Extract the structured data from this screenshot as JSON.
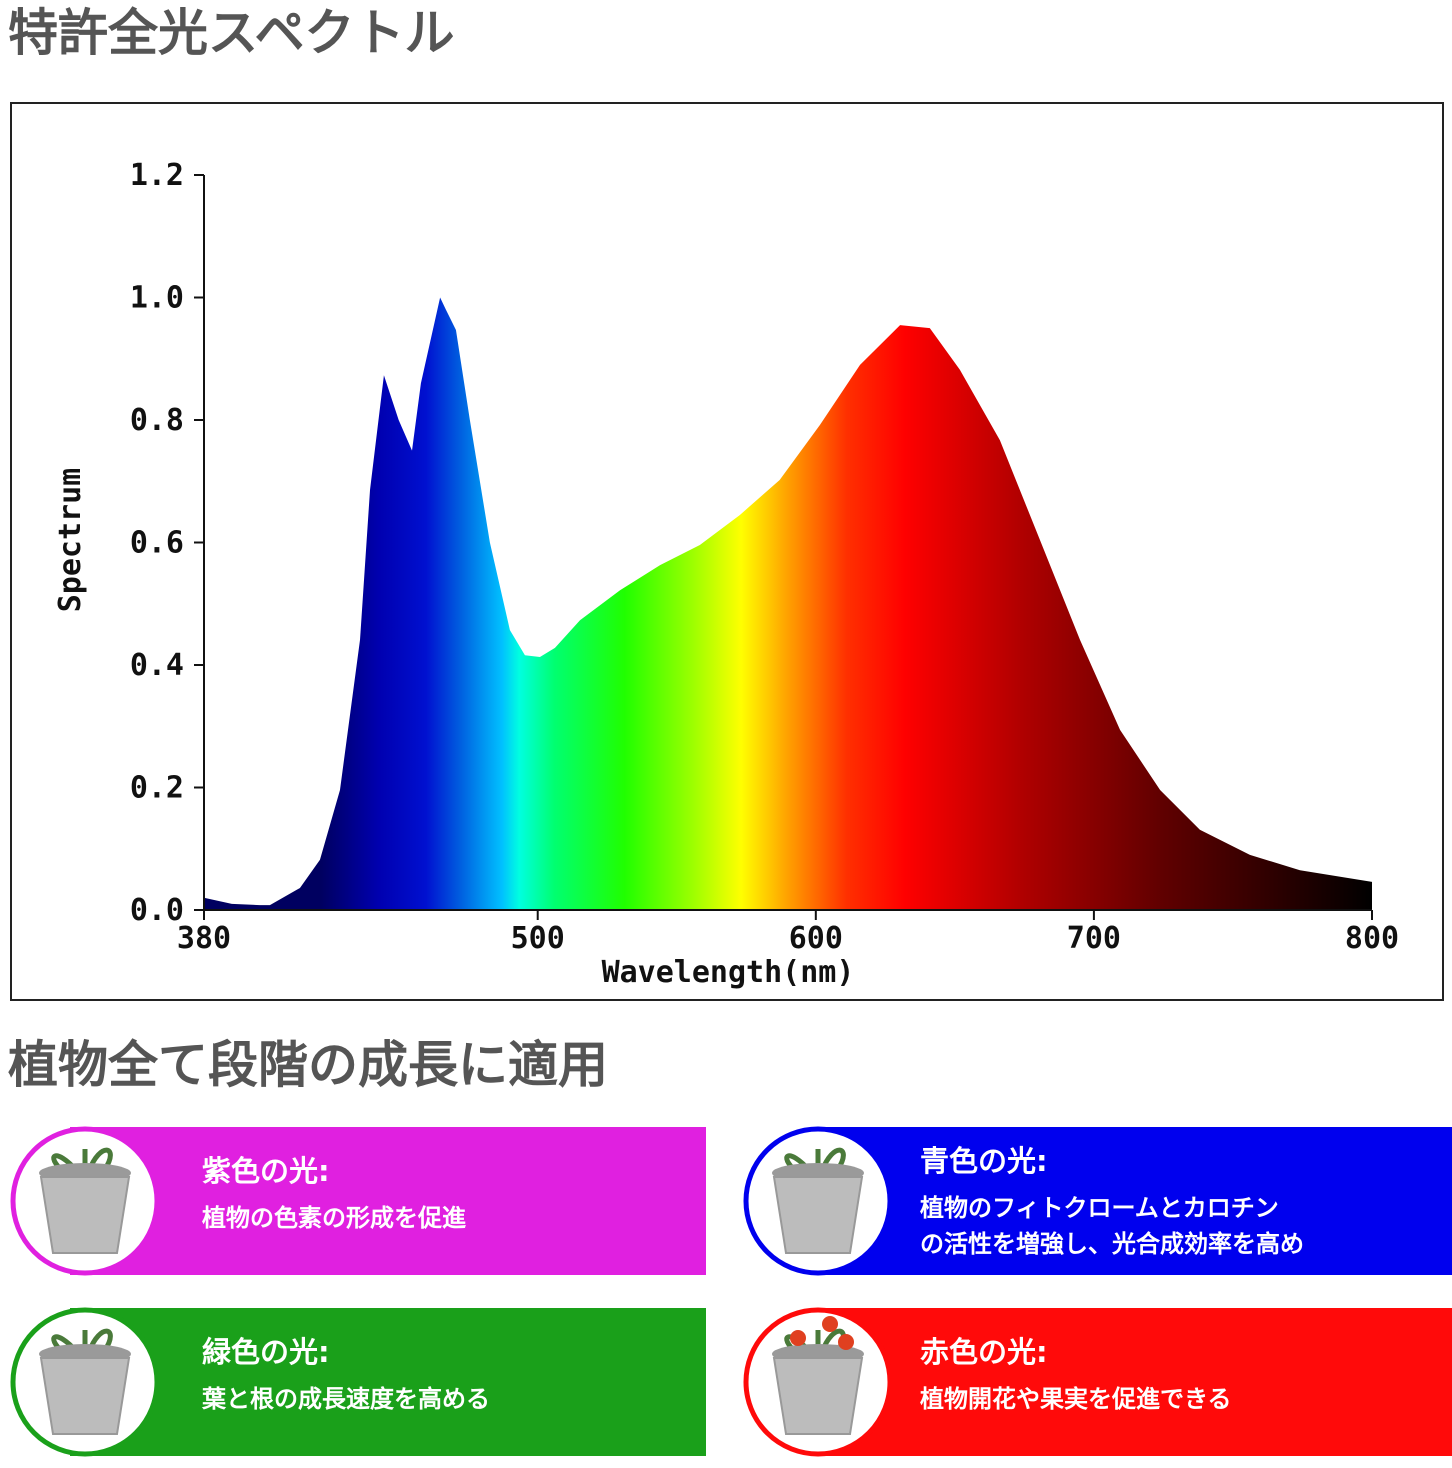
{
  "header": {
    "title": "特許全光スペクトル"
  },
  "chart_data": {
    "type": "area",
    "ylabel": "Spectrum",
    "xlabel": "Wavelength(nm)",
    "x": [
      380,
      390,
      400,
      403.7,
      414.5,
      421.7,
      428.9,
      436.1,
      439.7,
      444.7,
      450,
      454.8,
      458,
      464.9,
      467,
      470.6,
      475.6,
      482.8,
      490,
      495.4,
      500.8,
      506.2,
      515.2,
      529.6,
      544,
      558.3,
      572.7,
      587,
      601.5,
      615.9,
      630.3,
      641,
      651.8,
      666.2,
      680.6,
      695,
      709.4,
      723.8,
      738.1,
      756.1,
      774.1,
      800
    ],
    "values": [
      0.02,
      0.01,
      0.008,
      0.008,
      0.036,
      0.082,
      0.196,
      0.441,
      0.686,
      0.873,
      0.8,
      0.75,
      0.86,
      1.0,
      0.98,
      0.947,
      0.8,
      0.6,
      0.457,
      0.416,
      0.413,
      0.428,
      0.473,
      0.522,
      0.563,
      0.596,
      0.645,
      0.702,
      0.792,
      0.89,
      0.955,
      0.95,
      0.882,
      0.767,
      0.604,
      0.441,
      0.294,
      0.196,
      0.131,
      0.09,
      0.065,
      0.046
    ],
    "xlim": [
      380,
      800
    ],
    "xticks": [
      380,
      500,
      600,
      700,
      800
    ],
    "ylim": [
      0,
      1.2
    ],
    "yticks": [
      {
        "value": 0,
        "label": "0.0"
      },
      0.2,
      0.4,
      0.6,
      0.8,
      {
        "value": 1,
        "label": "1.0"
      },
      1.2
    ]
  },
  "section": {
    "title": "植物全て段階の成長に適用"
  },
  "cards": [
    {
      "title": "紫色の光:",
      "lines": [
        "植物の色素の形成を促進"
      ]
    },
    {
      "title": "青色の光:",
      "lines": [
        "植物のフィトクロームとカロチン",
        "の活性を増強し、光合成効率を高め"
      ]
    },
    {
      "title": "緑色の光:",
      "lines": [
        "葉と根の成長速度を高める"
      ]
    },
    {
      "title": "赤色の光:",
      "lines": [
        "植物開花や果実を促進できる"
      ]
    }
  ]
}
